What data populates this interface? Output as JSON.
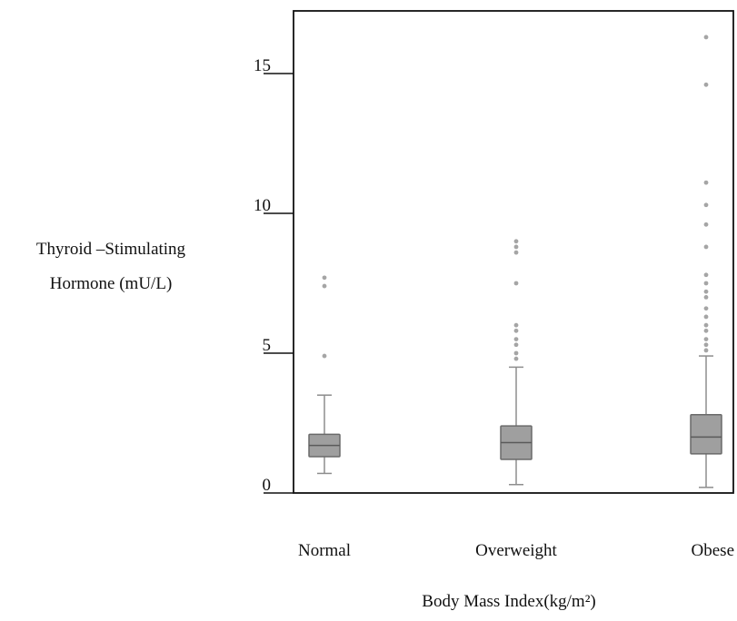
{
  "chart_data": {
    "type": "box",
    "title": "",
    "ylabel_line1": "Thyroid –Stimulating",
    "ylabel_line2": "Hormone (mU/L)",
    "xlabel": "Body Mass Index(kg/m²)",
    "ylim": [
      0,
      16.5
    ],
    "yticks": [
      0,
      5,
      10,
      15
    ],
    "grid": false,
    "categories": [
      "Normal",
      "Overweight",
      "Obese"
    ],
    "boxes": [
      {
        "category": "Normal",
        "whisker_low": 0.7,
        "q1": 1.3,
        "median": 1.7,
        "q3": 2.1,
        "whisker_high": 3.5,
        "outliers": [
          4.9,
          7.4,
          7.7
        ]
      },
      {
        "category": "Overweight",
        "whisker_low": 0.3,
        "q1": 1.2,
        "median": 1.8,
        "q3": 2.4,
        "whisker_high": 4.5,
        "outliers": [
          4.8,
          5.0,
          5.3,
          5.5,
          5.8,
          6.0,
          7.5,
          8.6,
          8.8,
          9.0
        ]
      },
      {
        "category": "Obese",
        "whisker_low": 0.2,
        "q1": 1.4,
        "median": 2.0,
        "q3": 2.8,
        "whisker_high": 4.9,
        "outliers": [
          5.1,
          5.3,
          5.5,
          5.8,
          6.0,
          6.3,
          6.6,
          7.0,
          7.2,
          7.5,
          7.8,
          8.8,
          9.6,
          10.3,
          11.1,
          14.6,
          16.3
        ]
      }
    ]
  }
}
